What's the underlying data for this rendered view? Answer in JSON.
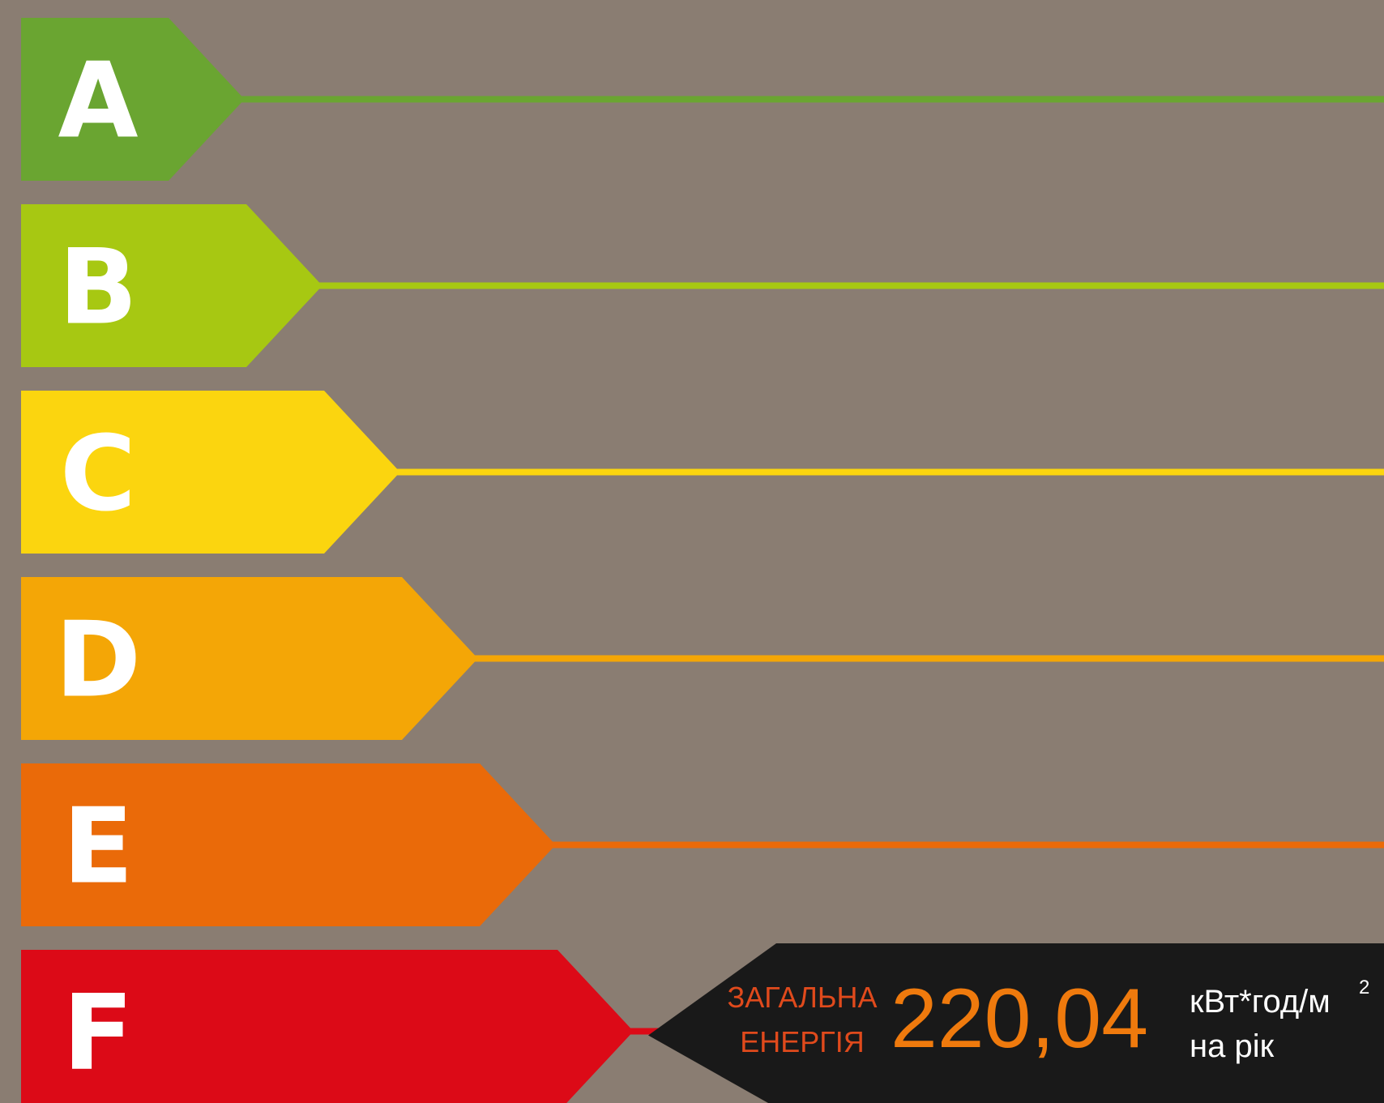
{
  "chart_data": {
    "type": "energy-rating-scale",
    "classes": [
      {
        "label": "A",
        "color": "#6aa531"
      },
      {
        "label": "B",
        "color": "#a7c812"
      },
      {
        "label": "C",
        "color": "#fbd50f"
      },
      {
        "label": "D",
        "color": "#f4a606"
      },
      {
        "label": "E",
        "color": "#ea6a09"
      },
      {
        "label": "F",
        "color": "#dc0a17"
      }
    ],
    "selected_class": "F",
    "indicator": {
      "label_line1": "ЗАГАЛЬНА",
      "label_line2": "ЕНЕРГІЯ",
      "value": "220,04",
      "unit_line1": "кВт*год/м",
      "unit_sup": "2",
      "unit_line2": "на рік"
    }
  },
  "colors": {
    "background": "#8a7d72",
    "indicator_bg": "#191919",
    "indicator_label": "#e04a1c",
    "indicator_value": "#ef7a0d",
    "indicator_unit": "#ffffff"
  }
}
